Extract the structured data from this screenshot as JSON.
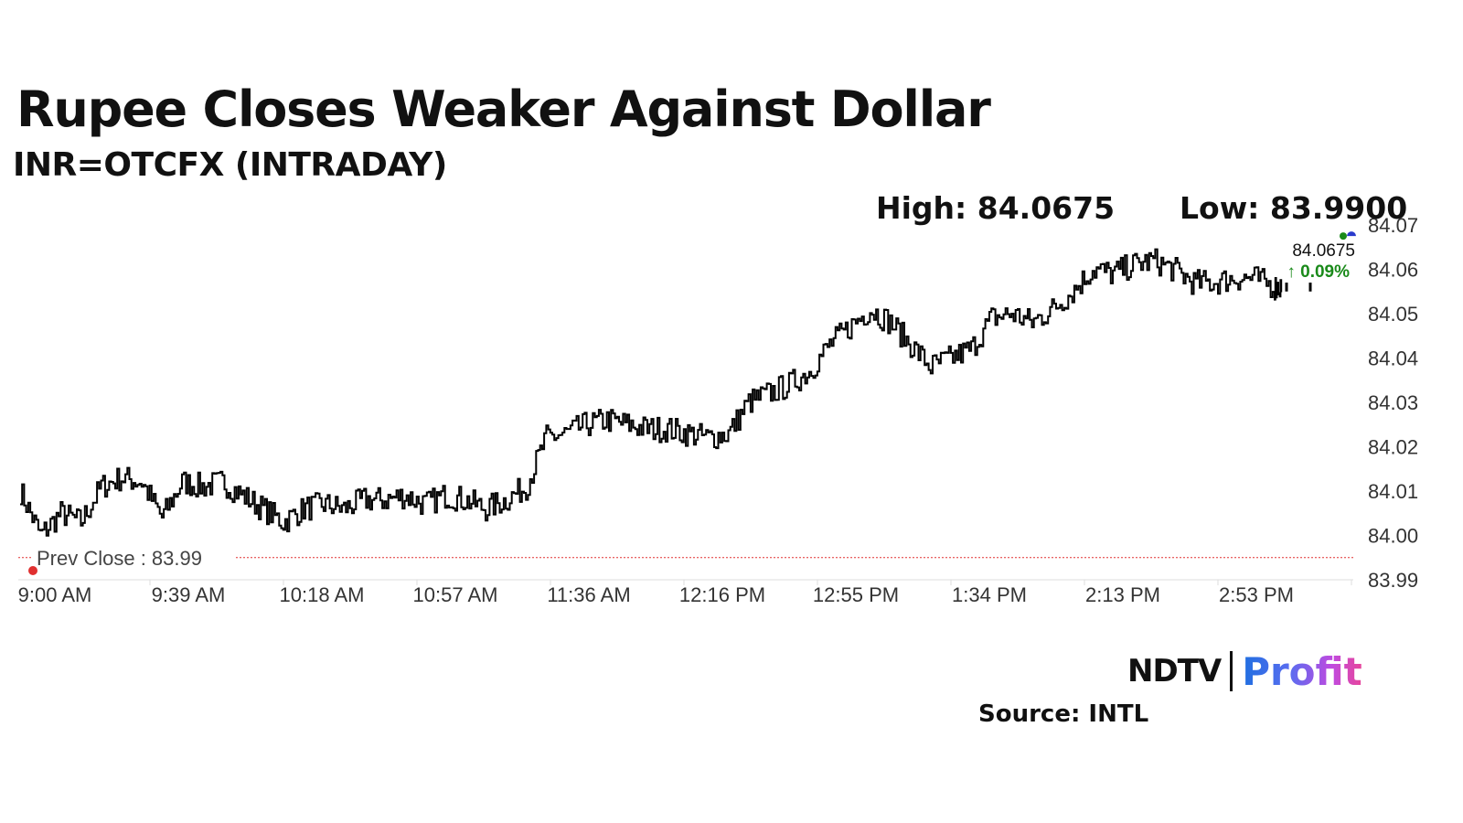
{
  "title": "Rupee Closes Weaker Against Dollar",
  "subtitle": "INR=OTCFX (INTRADAY)",
  "high_label": "High: 84.0675",
  "low_label": "Low: 83.9900",
  "source": "Source: INTL",
  "logo": {
    "ndtv": "NDTV",
    "profit": "Profit"
  },
  "colors": {
    "line": "#000000",
    "prev_close": "#e03030",
    "up": "#1a8a1a",
    "axis_text": "#333333",
    "grid": "#dddddd"
  },
  "chart_data": {
    "type": "line",
    "ylim": [
      83.99,
      84.07
    ],
    "y_ticks": [
      "84.07",
      "84.06",
      "84.05",
      "84.04",
      "84.03",
      "84.02",
      "84.01",
      "84.00",
      "83.99"
    ],
    "x_ticks": [
      "9:00 AM",
      "9:39 AM",
      "10:18 AM",
      "10:57 AM",
      "11:36 AM",
      "12:16 PM",
      "12:55 PM",
      "1:34 PM",
      "2:13 PM",
      "2:53 PM"
    ],
    "prev_close": {
      "value": 83.995,
      "label": "Prev Close : 83.99"
    },
    "last_value": {
      "price": "84.0675",
      "change": "↑ 0.09%"
    },
    "x": [
      "9:00 AM",
      "9:04 AM",
      "9:10 AM",
      "9:16 AM",
      "9:22 AM",
      "9:28 AM",
      "9:34 AM",
      "9:40 AM",
      "9:46 AM",
      "9:52 AM",
      "9:58 AM",
      "10:04 AM",
      "10:10 AM",
      "10:16 AM",
      "10:22 AM",
      "10:28 AM",
      "10:34 AM",
      "10:40 AM",
      "10:46 AM",
      "10:52 AM",
      "10:58 AM",
      "11:04 AM",
      "11:10 AM",
      "11:16 AM",
      "11:22 AM",
      "11:28 AM",
      "11:34 AM",
      "11:40 AM",
      "11:46 AM",
      "11:52 AM",
      "11:58 AM",
      "12:04 PM",
      "12:10 PM",
      "12:16 PM",
      "12:22 PM",
      "12:28 PM",
      "12:34 PM",
      "12:40 PM",
      "12:46 PM",
      "12:52 PM",
      "12:58 PM",
      "1:04 PM",
      "1:10 PM",
      "1:16 PM",
      "1:22 PM",
      "1:28 PM",
      "1:34 PM",
      "1:40 PM",
      "1:46 PM",
      "1:52 PM",
      "1:58 PM",
      "2:04 PM",
      "2:10 PM",
      "2:16 PM",
      "2:22 PM",
      "2:28 PM",
      "2:34 PM",
      "2:40 PM",
      "2:46 PM",
      "2:52 PM",
      "2:58 PM",
      "3:04 PM",
      "3:08 PM"
    ],
    "series": [
      {
        "values": [
          84.01,
          84.0,
          84.005,
          84.003,
          84.011,
          84.013,
          84.012,
          84.004,
          84.012,
          84.011,
          84.012,
          84.009,
          84.006,
          84.003,
          84.006,
          84.007,
          84.006,
          84.008,
          84.008,
          84.009,
          84.007,
          84.009,
          84.008,
          84.006,
          84.008,
          84.011,
          84.022,
          84.023,
          84.025,
          84.026,
          84.025,
          84.024,
          84.024,
          84.023,
          84.022,
          84.023,
          84.03,
          84.032,
          84.034,
          84.037,
          84.043,
          84.047,
          84.051,
          84.048,
          84.043,
          84.038,
          84.04,
          84.042,
          84.049,
          84.05,
          84.048,
          84.051,
          84.055,
          84.06,
          84.059,
          84.061,
          84.062,
          84.06,
          84.057,
          84.057,
          84.058,
          84.058,
          84.056
        ]
      }
    ]
  }
}
